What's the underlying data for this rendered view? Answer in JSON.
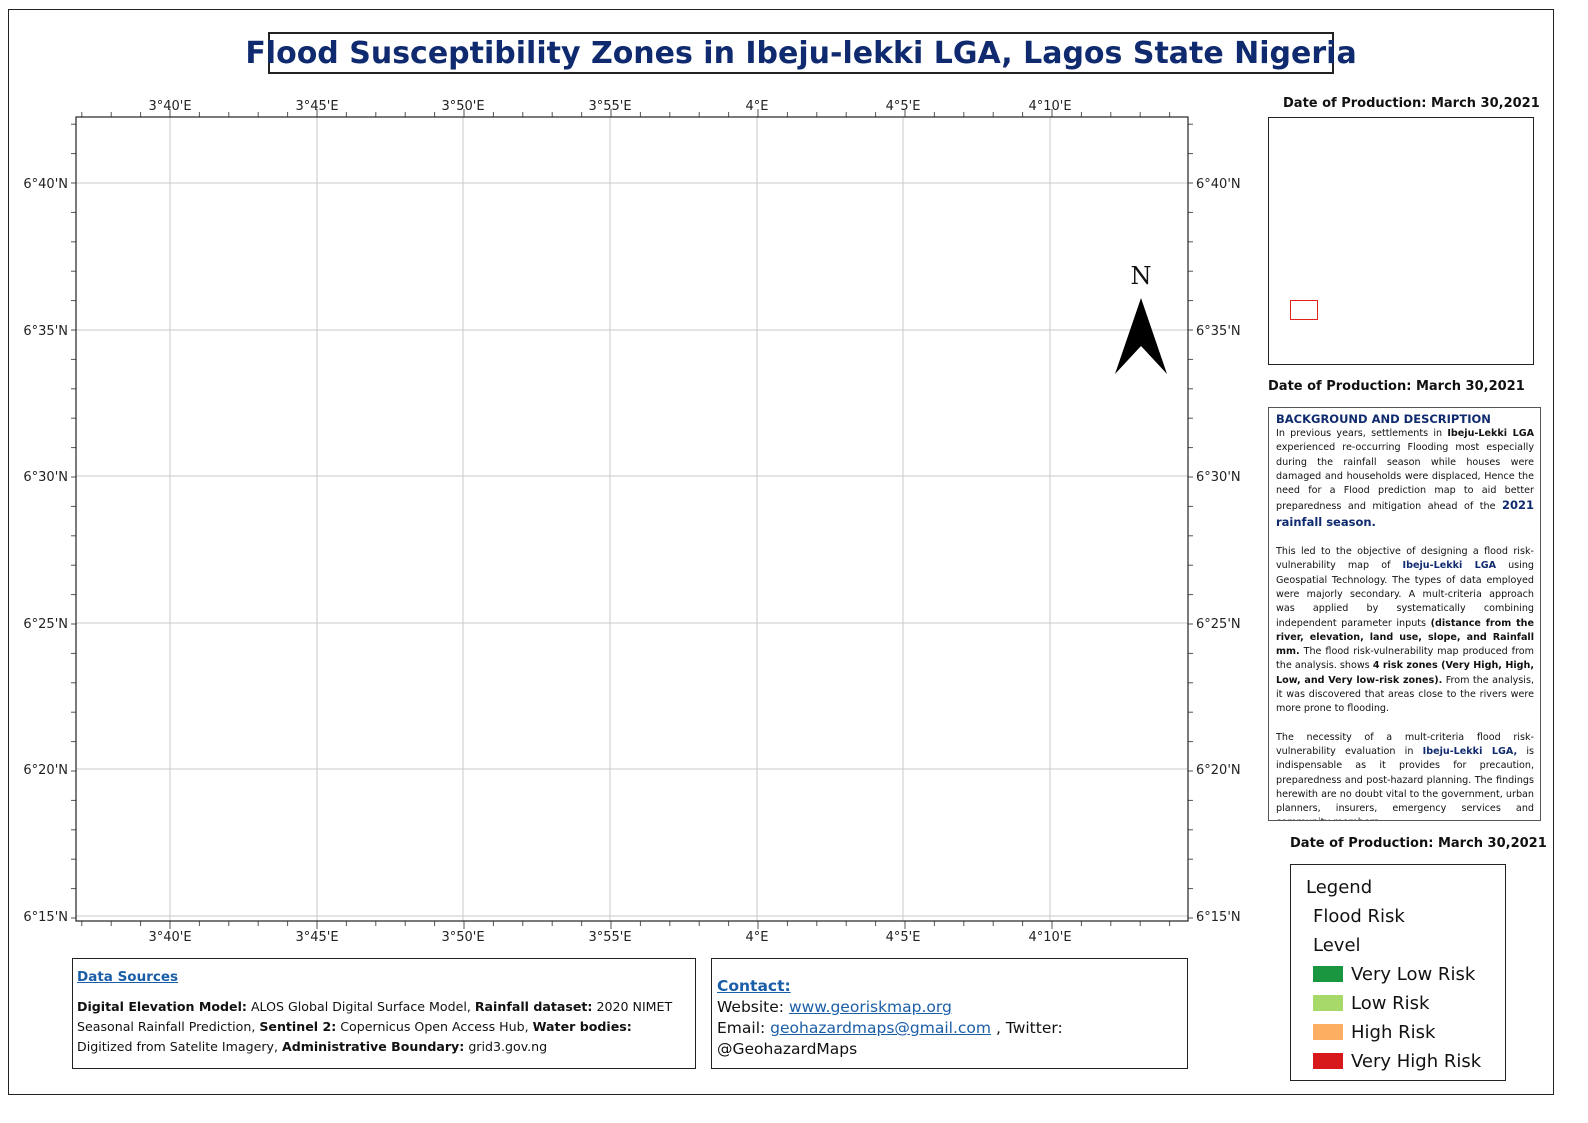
{
  "title": "Flood Susceptibility Zones in Ibeju-lekki LGA, Lagos State Nigeria",
  "map": {
    "lon_labels": [
      "3°40'E",
      "3°45'E",
      "3°50'E",
      "3°55'E",
      "4°E",
      "4°5'E",
      "4°10'E"
    ],
    "lat_labels": [
      "6°40'N",
      "6°35'N",
      "6°30'N",
      "6°25'N",
      "6°20'N",
      "6°15'N"
    ],
    "north_label": "N"
  },
  "production_date_1": "Date of Production: March 30,2021",
  "production_date_2": "Date of Production: March 30,2021",
  "production_date_3": "Date of Production: March 30,2021",
  "background": {
    "heading": "BACKGROUND AND DESCRIPTION",
    "p1_a": "In previous years, settlements in ",
    "p1_b": "Ibeju-Lekki LGA",
    "p1_c": " experienced re-occurring Flooding most especially during the rainfall season while houses were damaged and households were displaced, Hence the need for a Flood prediction map to aid better preparedness and mitigation ahead of the ",
    "p1_d": "2021 rainfall season.",
    "p2_a": "This led to the objective of designing a flood risk-vulnerability map of ",
    "p2_b": "Ibeju-Lekki LGA",
    "p2_c": " using Geospatial Technology. The types of data employed were majorly secondary. A mult-criteria approach was applied by systematically combining independent parameter inputs ",
    "p2_d": "(distance from the river, elevation, land use, slope, and Rainfall mm.",
    "p2_e": " The flood risk-vulnerability map produced from the analysis. shows ",
    "p2_f": "4 risk zones (Very High, High, Low, and Very low-risk zones).",
    "p2_g": " From the analysis, it was discovered that areas close to the rivers were more prone to flooding.",
    "p3_a": "The necessity of a mult-criteria flood risk-vulnerability evaluation in ",
    "p3_b": "Ibeju-Lekki LGA,",
    "p3_c": " is indispensable as it provides for precaution, preparedness and post-hazard planning. The findings herewith are no doubt vital to the government, urban planners, insurers, emergency services and community members."
  },
  "legend": {
    "title": "Legend",
    "subtitle1": "Flood Risk",
    "subtitle2": "Level",
    "items": [
      {
        "label": "Very Low Risk",
        "color": "#1a9641"
      },
      {
        "label": "Low Risk",
        "color": "#a6d96a"
      },
      {
        "label": "High Risk",
        "color": "#fdae61"
      },
      {
        "label": "Very High Risk",
        "color": "#d7191c"
      }
    ]
  },
  "data_sources": {
    "heading": "Data Sources",
    "dem_label": "Digital Elevation Model:",
    "dem_value": " ALOS Global Digital Surface Model, ",
    "rain_label": "Rainfall dataset:",
    "rain_value": " 2020 NIMET Seasonal Rainfall Prediction, ",
    "s2_label": "Sentinel 2:",
    "s2_value": " Copernicus Open Access Hub, ",
    "water_label": "Water bodies:",
    "water_value": " Digitized from Satelite Imagery, ",
    "admin_label": "Administrative Boundary:",
    "admin_value": " grid3.gov.ng"
  },
  "contact": {
    "heading": "Contact:",
    "website_label": "Website: ",
    "website": "www.georiskmap.org",
    "email_label": "Email: ",
    "email": "geohazardmaps@gmail.com",
    "twitter": " , Twitter: @GeohazardMaps"
  }
}
